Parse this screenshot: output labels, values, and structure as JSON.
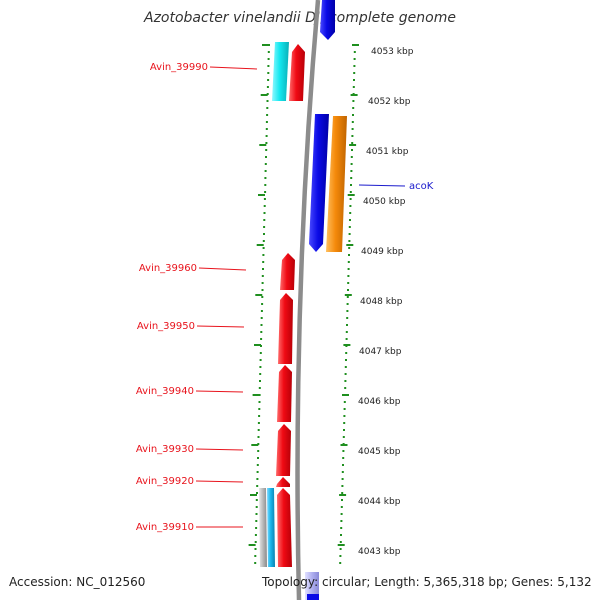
{
  "title": "Azotobacter vinelandii DJ, complete genome",
  "accession": "Accession: NC_012560",
  "topology": "Topology: circular; Length: 5,365,318 bp; Genes: 5,132",
  "scale": {
    "tick_labels": [
      "4053 kbp",
      "4052 kbp",
      "4051 kbp",
      "4050 kbp",
      "4049 kbp",
      "4048 kbp",
      "4047 kbp",
      "4046 kbp",
      "4045 kbp",
      "4044 kbp",
      "4043 kbp"
    ]
  },
  "gene_labels": [
    {
      "text": "Avin_39990",
      "color": "#e8141d"
    },
    {
      "text": "acoK",
      "color": "#1a1acc"
    },
    {
      "text": "Avin_39960",
      "color": "#e8141d"
    },
    {
      "text": "Avin_39950",
      "color": "#e8141d"
    },
    {
      "text": "Avin_39940",
      "color": "#e8141d"
    },
    {
      "text": "Avin_39930",
      "color": "#e8141d"
    },
    {
      "text": "Avin_39920",
      "color": "#e8141d"
    },
    {
      "text": "Avin_39910",
      "color": "#e8141d"
    }
  ],
  "colors": {
    "red_gene": "#f00a14",
    "blue_gene": "#0a0ae6",
    "orange_gene": "#f58a0a",
    "cyan_gene": "#14e8f0",
    "sky_gene": "#1ab8ec",
    "grey_gene": "#b8b8b8",
    "backbone": "#8c8c8c",
    "dots": "#1f8f1f"
  }
}
